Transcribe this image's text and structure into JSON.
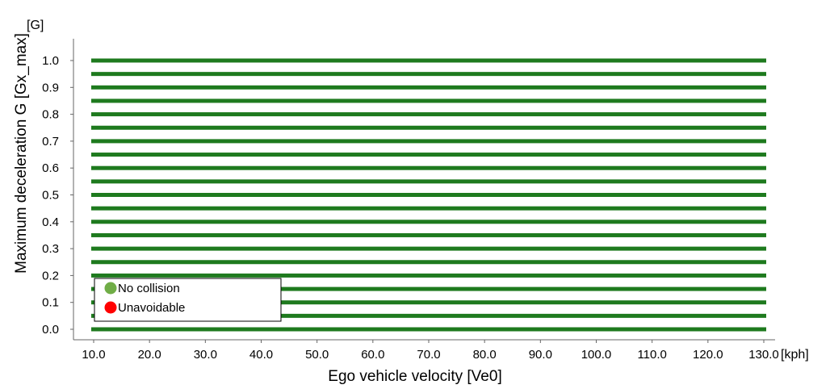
{
  "chart_data": {
    "type": "scatter",
    "xlabel": "Ego vehicle velocity [Ve0]",
    "ylabel": "Maximum deceleration G [Gx_max]",
    "x_unit": "[kph]",
    "y_unit": "[G]",
    "xlim": [
      10.0,
      130.0
    ],
    "ylim": [
      0.0,
      1.0
    ],
    "x_ticks": [
      "10.0",
      "20.0",
      "30.0",
      "40.0",
      "50.0",
      "60.0",
      "70.0",
      "80.0",
      "90.0",
      "100.0",
      "110.0",
      "120.0",
      "130.0"
    ],
    "y_ticks": [
      "0.0",
      "0.1",
      "0.2",
      "0.3",
      "0.4",
      "0.5",
      "0.6",
      "0.7",
      "0.8",
      "0.9",
      "1.0"
    ],
    "grid": false,
    "legend_position": "bottom-left",
    "x": {
      "start": 10.0,
      "end": 130.0,
      "step": 1.0
    },
    "y_levels": [
      0.0,
      0.05,
      0.1,
      0.15,
      0.2,
      0.25,
      0.3,
      0.35,
      0.4,
      0.45,
      0.5,
      0.55,
      0.6,
      0.65,
      0.7,
      0.75,
      0.8,
      0.85,
      0.9,
      0.95,
      1.0
    ],
    "series": [
      {
        "name": "No collision",
        "color": "#70ad47",
        "mark_color": "#1e7a1e",
        "points": "all"
      },
      {
        "name": "Unavoidable",
        "color": "#ff0000",
        "points": "none"
      }
    ]
  }
}
